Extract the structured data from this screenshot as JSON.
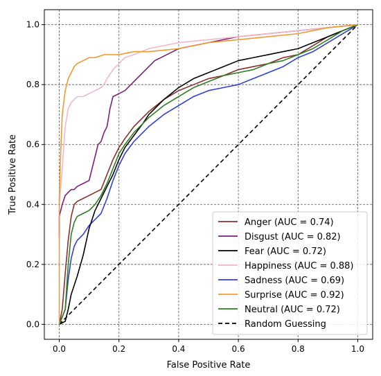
{
  "chart_data": {
    "type": "line",
    "title": "",
    "xlabel": "False Positive Rate",
    "ylabel": "True Positive Rate",
    "xlim": [
      -0.05,
      1.05
    ],
    "ylim": [
      -0.05,
      1.05
    ],
    "xticks": [
      "0.0",
      "0.2",
      "0.4",
      "0.6",
      "0.8",
      "1.0"
    ],
    "yticks": [
      "0.0",
      "0.2",
      "0.4",
      "0.6",
      "0.8",
      "1.0"
    ],
    "grid": true,
    "legend_position": "lower-right",
    "series": [
      {
        "name": "Anger (AUC = 0.74)",
        "color": "#8b2e2e",
        "dash": "solid",
        "x": [
          0.0,
          0.01,
          0.02,
          0.03,
          0.04,
          0.05,
          0.06,
          0.08,
          0.1,
          0.12,
          0.14,
          0.16,
          0.18,
          0.2,
          0.22,
          0.25,
          0.28,
          0.3,
          0.35,
          0.4,
          0.45,
          0.5,
          0.55,
          0.6,
          0.65,
          0.7,
          0.75,
          0.8,
          0.85,
          0.9,
          0.95,
          1.0
        ],
        "y": [
          0.0,
          0.05,
          0.17,
          0.28,
          0.36,
          0.4,
          0.41,
          0.42,
          0.43,
          0.44,
          0.45,
          0.5,
          0.55,
          0.59,
          0.62,
          0.66,
          0.69,
          0.71,
          0.75,
          0.78,
          0.8,
          0.82,
          0.83,
          0.85,
          0.86,
          0.87,
          0.89,
          0.9,
          0.93,
          0.96,
          0.98,
          1.0
        ]
      },
      {
        "name": "Disgust (AUC = 0.82)",
        "color": "#7b1f7b",
        "dash": "solid",
        "x": [
          0.0,
          0.0,
          0.01,
          0.02,
          0.03,
          0.04,
          0.05,
          0.06,
          0.08,
          0.1,
          0.11,
          0.12,
          0.13,
          0.14,
          0.15,
          0.16,
          0.17,
          0.18,
          0.2,
          0.22,
          0.24,
          0.28,
          0.32,
          0.36,
          0.4,
          0.45,
          0.5,
          0.55,
          0.6,
          0.7,
          0.8,
          0.9,
          1.0
        ],
        "y": [
          0.29,
          0.36,
          0.4,
          0.43,
          0.44,
          0.45,
          0.45,
          0.46,
          0.47,
          0.48,
          0.52,
          0.56,
          0.6,
          0.61,
          0.64,
          0.66,
          0.72,
          0.76,
          0.77,
          0.78,
          0.8,
          0.84,
          0.88,
          0.9,
          0.92,
          0.93,
          0.94,
          0.95,
          0.96,
          0.97,
          0.98,
          0.99,
          1.0
        ]
      },
      {
        "name": "Fear (AUC = 0.72)",
        "color": "#000000",
        "dash": "solid",
        "x": [
          0.0,
          0.02,
          0.03,
          0.04,
          0.05,
          0.06,
          0.08,
          0.1,
          0.12,
          0.14,
          0.16,
          0.18,
          0.2,
          0.22,
          0.25,
          0.28,
          0.3,
          0.35,
          0.4,
          0.45,
          0.5,
          0.55,
          0.6,
          0.65,
          0.7,
          0.75,
          0.8,
          0.85,
          0.9,
          0.95,
          1.0
        ],
        "y": [
          0.0,
          0.01,
          0.05,
          0.1,
          0.13,
          0.16,
          0.23,
          0.32,
          0.38,
          0.42,
          0.46,
          0.5,
          0.55,
          0.59,
          0.63,
          0.67,
          0.7,
          0.75,
          0.79,
          0.82,
          0.84,
          0.86,
          0.88,
          0.89,
          0.9,
          0.91,
          0.92,
          0.94,
          0.96,
          0.98,
          1.0
        ]
      },
      {
        "name": "Happiness (AUC = 0.88)",
        "color": "#f2b8c6",
        "dash": "solid",
        "x": [
          0.0,
          0.01,
          0.02,
          0.03,
          0.04,
          0.05,
          0.06,
          0.08,
          0.1,
          0.12,
          0.14,
          0.15,
          0.16,
          0.18,
          0.2,
          0.22,
          0.25,
          0.3,
          0.35,
          0.4,
          0.5,
          0.6,
          0.7,
          0.8,
          0.9,
          1.0
        ],
        "y": [
          0.4,
          0.52,
          0.66,
          0.72,
          0.74,
          0.75,
          0.76,
          0.76,
          0.77,
          0.78,
          0.79,
          0.8,
          0.82,
          0.85,
          0.87,
          0.89,
          0.9,
          0.92,
          0.93,
          0.94,
          0.95,
          0.96,
          0.97,
          0.98,
          0.99,
          1.0
        ]
      },
      {
        "name": "Sadness (AUC = 0.69)",
        "color": "#2f3fd9",
        "dash": "solid",
        "x": [
          0.0,
          0.02,
          0.03,
          0.04,
          0.05,
          0.06,
          0.08,
          0.1,
          0.12,
          0.14,
          0.16,
          0.18,
          0.2,
          0.22,
          0.25,
          0.28,
          0.3,
          0.35,
          0.4,
          0.45,
          0.5,
          0.55,
          0.6,
          0.65,
          0.7,
          0.75,
          0.8,
          0.85,
          0.9,
          0.95,
          1.0
        ],
        "y": [
          0.0,
          0.05,
          0.15,
          0.22,
          0.26,
          0.28,
          0.3,
          0.33,
          0.35,
          0.37,
          0.42,
          0.48,
          0.53,
          0.57,
          0.61,
          0.64,
          0.66,
          0.7,
          0.73,
          0.76,
          0.78,
          0.79,
          0.8,
          0.82,
          0.84,
          0.86,
          0.89,
          0.91,
          0.94,
          0.97,
          1.0
        ]
      },
      {
        "name": "Surprise (AUC = 0.92)",
        "color": "#ef9a2f",
        "dash": "solid",
        "x": [
          0.0,
          0.0,
          0.005,
          0.01,
          0.015,
          0.02,
          0.03,
          0.04,
          0.05,
          0.06,
          0.08,
          0.1,
          0.12,
          0.15,
          0.2,
          0.25,
          0.3,
          0.4,
          0.5,
          0.6,
          0.7,
          0.8,
          0.9,
          1.0
        ],
        "y": [
          0.0,
          0.42,
          0.58,
          0.7,
          0.74,
          0.78,
          0.82,
          0.84,
          0.86,
          0.87,
          0.88,
          0.89,
          0.89,
          0.9,
          0.9,
          0.91,
          0.91,
          0.92,
          0.94,
          0.95,
          0.96,
          0.97,
          0.99,
          1.0
        ]
      },
      {
        "name": "Neutral (AUC = 0.72)",
        "color": "#2e7d1e",
        "dash": "solid",
        "x": [
          0.0,
          0.02,
          0.03,
          0.04,
          0.05,
          0.06,
          0.08,
          0.1,
          0.12,
          0.14,
          0.16,
          0.18,
          0.2,
          0.22,
          0.25,
          0.28,
          0.3,
          0.35,
          0.4,
          0.45,
          0.5,
          0.55,
          0.6,
          0.65,
          0.7,
          0.75,
          0.8,
          0.85,
          0.9,
          0.95,
          1.0
        ],
        "y": [
          0.0,
          0.05,
          0.2,
          0.3,
          0.34,
          0.36,
          0.37,
          0.38,
          0.4,
          0.43,
          0.47,
          0.52,
          0.57,
          0.6,
          0.64,
          0.67,
          0.69,
          0.73,
          0.76,
          0.79,
          0.81,
          0.83,
          0.84,
          0.85,
          0.87,
          0.88,
          0.9,
          0.92,
          0.95,
          0.98,
          1.0
        ]
      },
      {
        "name": "Random Guessing",
        "color": "#000000",
        "dash": "dashed",
        "x": [
          0.0,
          1.0
        ],
        "y": [
          0.0,
          1.0
        ]
      }
    ]
  }
}
